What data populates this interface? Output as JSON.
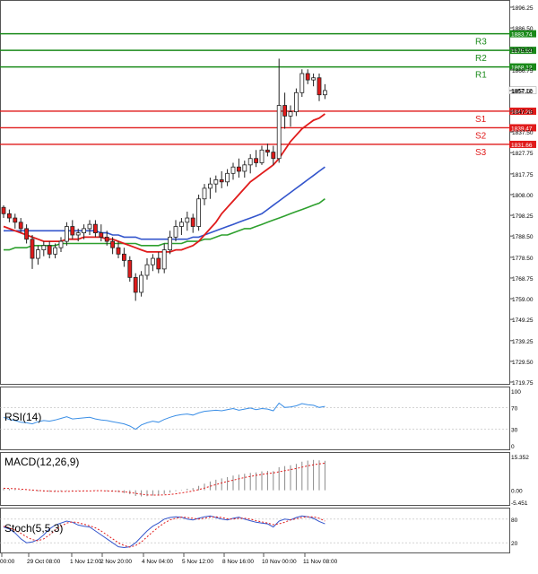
{
  "chart_data": [
    {
      "type": "candlestick",
      "title": "",
      "ylim": [
        1719.75,
        1896.25
      ],
      "y_ticks": [
        "1896.25",
        "1886.50",
        "1876.50",
        "1866.75",
        "1857.00",
        "1847.25",
        "1837.50",
        "1827.75",
        "1817.75",
        "1808.00",
        "1798.25",
        "1788.50",
        "1778.50",
        "1768.75",
        "1759.00",
        "1749.25",
        "1739.25",
        "1729.50",
        "1719.75"
      ],
      "x_ticks": [
        "00:00",
        "29 Oct 08:00",
        "1 Nov 12:00",
        "2 Nov 20:00",
        "4 Nov 04:00",
        "5 Nov 12:00",
        "8 Nov 16:00",
        "10 Nov 00:00",
        "11 Nov 08:00"
      ],
      "candles": [
        [
          1802,
          1803,
          1797,
          1799
        ],
        [
          1799,
          1801,
          1795,
          1797
        ],
        [
          1797,
          1799,
          1792,
          1795
        ],
        [
          1795,
          1797,
          1790,
          1792
        ],
        [
          1792,
          1794,
          1785,
          1787
        ],
        [
          1787,
          1789,
          1773,
          1778
        ],
        [
          1778,
          1784,
          1775,
          1782
        ],
        [
          1782,
          1786,
          1779,
          1784
        ],
        [
          1784,
          1786,
          1778,
          1780
        ],
        [
          1780,
          1785,
          1778,
          1783
        ],
        [
          1783,
          1788,
          1781,
          1786
        ],
        [
          1786,
          1795,
          1784,
          1793
        ],
        [
          1793,
          1796,
          1787,
          1789
        ],
        [
          1789,
          1792,
          1786,
          1790
        ],
        [
          1790,
          1794,
          1787,
          1792
        ],
        [
          1792,
          1796,
          1789,
          1794
        ],
        [
          1794,
          1796,
          1788,
          1790
        ],
        [
          1790,
          1794,
          1786,
          1788
        ],
        [
          1788,
          1791,
          1784,
          1786
        ],
        [
          1786,
          1788,
          1780,
          1783
        ],
        [
          1783,
          1786,
          1778,
          1780
        ],
        [
          1780,
          1783,
          1774,
          1777
        ],
        [
          1777,
          1779,
          1767,
          1769
        ],
        [
          1769,
          1771,
          1758,
          1762
        ],
        [
          1762,
          1772,
          1760,
          1770
        ],
        [
          1770,
          1778,
          1768,
          1775
        ],
        [
          1775,
          1780,
          1772,
          1778
        ],
        [
          1778,
          1781,
          1771,
          1773
        ],
        [
          1773,
          1785,
          1771,
          1782
        ],
        [
          1782,
          1791,
          1780,
          1788
        ],
        [
          1788,
          1796,
          1786,
          1793
        ],
        [
          1793,
          1797,
          1789,
          1795
        ],
        [
          1795,
          1800,
          1791,
          1797
        ],
        [
          1797,
          1799,
          1790,
          1793
        ],
        [
          1793,
          1808,
          1791,
          1806
        ],
        [
          1806,
          1813,
          1803,
          1811
        ],
        [
          1811,
          1816,
          1806,
          1813
        ],
        [
          1813,
          1817,
          1809,
          1815
        ],
        [
          1815,
          1819,
          1811,
          1814
        ],
        [
          1814,
          1820,
          1812,
          1818
        ],
        [
          1818,
          1823,
          1815,
          1821
        ],
        [
          1821,
          1825,
          1816,
          1819
        ],
        [
          1819,
          1824,
          1816,
          1822
        ],
        [
          1822,
          1827,
          1818,
          1825
        ],
        [
          1825,
          1829,
          1821,
          1823
        ],
        [
          1823,
          1831,
          1822,
          1829
        ],
        [
          1829,
          1832,
          1826,
          1828
        ],
        [
          1828,
          1831,
          1822,
          1825
        ],
        [
          1825,
          1872,
          1823,
          1850
        ],
        [
          1850,
          1856,
          1839,
          1845
        ],
        [
          1845,
          1850,
          1840,
          1847
        ],
        [
          1847,
          1858,
          1845,
          1856
        ],
        [
          1856,
          1867,
          1854,
          1865
        ],
        [
          1865,
          1867,
          1860,
          1862
        ],
        [
          1862,
          1865,
          1859,
          1863
        ],
        [
          1863,
          1865,
          1852,
          1855
        ],
        [
          1855,
          1860,
          1853,
          1857
        ]
      ],
      "ma_red": [
        1793,
        1792,
        1791,
        1790,
        1789,
        1788,
        1787,
        1786,
        1786,
        1786,
        1786,
        1787,
        1787,
        1787,
        1788,
        1788,
        1788,
        1788,
        1787,
        1787,
        1786,
        1785,
        1784,
        1783,
        1782,
        1781,
        1781,
        1781,
        1781,
        1781,
        1782,
        1782,
        1783,
        1784,
        1786,
        1789,
        1792,
        1795,
        1799,
        1802,
        1805,
        1808,
        1811,
        1814,
        1816,
        1818,
        1820,
        1822,
        1825,
        1829,
        1833,
        1836,
        1839,
        1841,
        1843,
        1844,
        1846
      ],
      "ma_blue": [
        1791,
        1791,
        1791,
        1791,
        1791,
        1791,
        1791,
        1791,
        1791,
        1791,
        1791,
        1791,
        1791,
        1791,
        1791,
        1791,
        1791,
        1790,
        1790,
        1789,
        1789,
        1788,
        1788,
        1788,
        1787,
        1787,
        1787,
        1787,
        1787,
        1787,
        1787,
        1787,
        1787,
        1788,
        1788,
        1789,
        1790,
        1791,
        1792,
        1793,
        1794,
        1795,
        1796,
        1797,
        1798,
        1799,
        1801,
        1803,
        1805,
        1807,
        1809,
        1811,
        1813,
        1815,
        1817,
        1819,
        1821
      ],
      "ma_green": [
        1782,
        1782,
        1783,
        1783,
        1783,
        1784,
        1784,
        1784,
        1784,
        1784,
        1785,
        1785,
        1785,
        1785,
        1785,
        1785,
        1785,
        1785,
        1785,
        1785,
        1785,
        1785,
        1785,
        1785,
        1784,
        1784,
        1784,
        1784,
        1785,
        1785,
        1785,
        1785,
        1786,
        1786,
        1786,
        1787,
        1787,
        1788,
        1789,
        1789,
        1790,
        1791,
        1792,
        1792,
        1793,
        1794,
        1795,
        1796,
        1797,
        1798,
        1799,
        1800,
        1801,
        1802,
        1803,
        1804,
        1806
      ],
      "price_labels": [
        "1883.74",
        "1875.93",
        "1868.12",
        "1857.12",
        "1847.28",
        "1839.47",
        "1831.66"
      ],
      "levels": [
        {
          "name": "R3",
          "value": 1883.74,
          "label": "1883.74",
          "color": "#1a8a1a"
        },
        {
          "name": "R2",
          "value": 1875.93,
          "label": "1875.93",
          "color": "#1a8a1a"
        },
        {
          "name": "R1",
          "value": 1868.12,
          "label": "1868.12",
          "color": "#1a8a1a"
        },
        {
          "name": "S1",
          "value": 1847.28,
          "label": "1847.28",
          "color": "#e01b1b"
        },
        {
          "name": "S2",
          "value": 1839.47,
          "label": "1839.47",
          "color": "#e01b1b"
        },
        {
          "name": "S3",
          "value": 1831.66,
          "label": "1831.66",
          "color": "#e01b1b"
        }
      ],
      "current_price": "1857.12",
      "colors": {
        "bull": "#1a8a1a",
        "bear": "#e01b1b",
        "ma_red": "#e01b1b",
        "ma_blue": "#3355cc",
        "ma_green": "#2ea02e",
        "level_text_r": "#1a8a1a",
        "level_text_s": "#e01b1b"
      }
    },
    {
      "type": "line",
      "indicator": "RSI(14)",
      "ylim": [
        0,
        100
      ],
      "y_ticks": [
        "100",
        "70",
        "30",
        "0"
      ],
      "values": [
        52,
        48,
        46,
        43,
        42,
        40,
        44,
        46,
        45,
        47,
        50,
        53,
        49,
        50,
        51,
        52,
        49,
        47,
        46,
        44,
        42,
        40,
        36,
        30,
        38,
        42,
        45,
        43,
        48,
        52,
        55,
        57,
        58,
        56,
        60,
        63,
        64,
        65,
        64,
        66,
        68,
        65,
        67,
        69,
        66,
        68,
        67,
        64,
        78,
        70,
        71,
        73,
        77,
        75,
        74,
        70,
        72
      ]
    },
    {
      "type": "bar",
      "indicator": "MACD(12,26,9)",
      "ylim": [
        -5.451,
        15.352
      ],
      "y_ticks": [
        "15.352",
        "0.00",
        "-5.451"
      ],
      "values": [
        0.8,
        0.6,
        0.4,
        0.2,
        0,
        -0.3,
        -0.5,
        -0.6,
        -0.7,
        -0.6,
        -0.5,
        -0.3,
        -0.3,
        -0.2,
        -0.1,
        0,
        -0.1,
        -0.2,
        -0.4,
        -0.6,
        -0.9,
        -1.3,
        -1.8,
        -2.6,
        -2.8,
        -2.7,
        -2.4,
        -2.2,
        -1.7,
        -1.1,
        -0.4,
        0.2,
        0.7,
        1,
        2,
        3,
        4,
        4.8,
        5.4,
        6,
        6.7,
        7.1,
        7.5,
        7.9,
        8.1,
        8.6,
        8.8,
        8.7,
        10.5,
        11,
        11.4,
        12,
        13,
        13.5,
        13.8,
        13.6,
        13.4
      ],
      "signal": [
        0.9,
        0.8,
        0.7,
        0.5,
        0.3,
        0.1,
        -0.1,
        -0.3,
        -0.4,
        -0.5,
        -0.5,
        -0.5,
        -0.4,
        -0.4,
        -0.3,
        -0.3,
        -0.2,
        -0.2,
        -0.3,
        -0.4,
        -0.5,
        -0.7,
        -1,
        -1.4,
        -1.8,
        -2.1,
        -2.2,
        -2.2,
        -2.1,
        -1.9,
        -1.6,
        -1.2,
        -0.8,
        -0.3,
        0.3,
        1,
        1.8,
        2.6,
        3.3,
        4,
        4.6,
        5.2,
        5.8,
        6.3,
        6.8,
        7.2,
        7.6,
        7.9,
        8.4,
        8.9,
        9.4,
        9.9,
        10.5,
        11.1,
        11.6,
        12,
        12.3
      ],
      "colors": {
        "hist": "#8a8a8a",
        "signal": "#e01b1b"
      }
    },
    {
      "type": "line",
      "indicator": "Stoch(5,5,3)",
      "ylim": [
        0,
        100
      ],
      "y_ticks": [
        "80",
        "20"
      ],
      "k_values": [
        60,
        55,
        45,
        30,
        20,
        22,
        28,
        40,
        55,
        65,
        70,
        75,
        72,
        65,
        62,
        60,
        50,
        40,
        30,
        20,
        10,
        8,
        10,
        20,
        35,
        50,
        62,
        70,
        80,
        84,
        86,
        85,
        80,
        78,
        82,
        86,
        88,
        84,
        80,
        78,
        82,
        85,
        80,
        76,
        72,
        70,
        68,
        60,
        75,
        80,
        78,
        84,
        88,
        86,
        82,
        74,
        68
      ],
      "d_values": [
        62,
        58,
        52,
        44,
        35,
        28,
        25,
        30,
        40,
        52,
        62,
        70,
        73,
        71,
        67,
        63,
        58,
        50,
        40,
        30,
        20,
        13,
        9,
        13,
        22,
        35,
        48,
        60,
        70,
        78,
        82,
        85,
        84,
        82,
        80,
        82,
        85,
        86,
        84,
        81,
        80,
        82,
        82,
        80,
        76,
        73,
        70,
        66,
        68,
        72,
        78,
        81,
        84,
        86,
        86,
        82,
        75
      ],
      "colors": {
        "k": "#3355cc",
        "d": "#e01b1b"
      }
    }
  ],
  "panel_labels": {
    "rsi": "RSI(14)",
    "macd": "MACD(12,26,9)",
    "stoch": "Stoch(5,5,3)"
  }
}
